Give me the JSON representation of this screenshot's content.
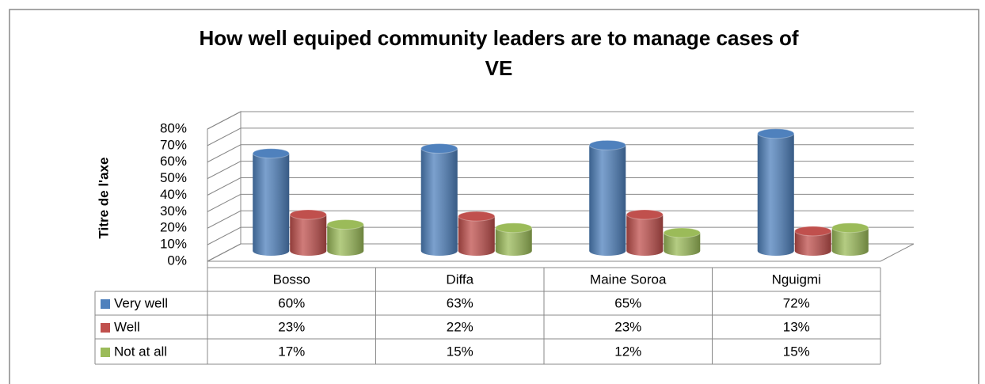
{
  "chart_data": {
    "type": "bar3d",
    "title": "How well equiped community leaders are to manage cases of VE",
    "ylabel": "Titre de l'axe",
    "categories": [
      "Bosso",
      "Diffa",
      "Maine Soroa",
      "Nguigmi"
    ],
    "series": [
      {
        "name": "Very well",
        "color": "#4f81bd",
        "values": [
          60,
          63,
          65,
          72
        ],
        "value_labels": [
          "60%",
          "63%",
          "65%",
          "72%"
        ]
      },
      {
        "name": "Well",
        "color": "#c0504d",
        "values": [
          23,
          22,
          23,
          13
        ],
        "value_labels": [
          "23%",
          "22%",
          "23%",
          "13%"
        ]
      },
      {
        "name": "Not at all",
        "color": "#9bbb59",
        "values": [
          17,
          15,
          12,
          15
        ],
        "value_labels": [
          "17%",
          "15%",
          "12%",
          "15%"
        ]
      }
    ],
    "ylim": [
      0,
      80
    ],
    "yticks": [
      {
        "value": 0,
        "label": "0%"
      },
      {
        "value": 10,
        "label": "10%"
      },
      {
        "value": 20,
        "label": "20%"
      },
      {
        "value": 30,
        "label": "30%"
      },
      {
        "value": 40,
        "label": "40%"
      },
      {
        "value": 50,
        "label": "50%"
      },
      {
        "value": 60,
        "label": "60%"
      },
      {
        "value": 70,
        "label": "70%"
      },
      {
        "value": 80,
        "label": "80%"
      }
    ],
    "grid": true
  }
}
